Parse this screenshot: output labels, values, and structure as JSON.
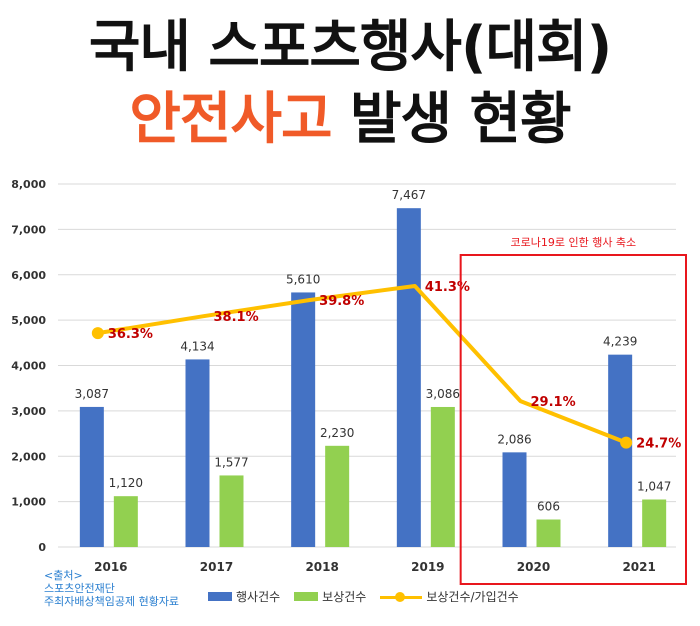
{
  "title": {
    "line1": "국내 스포츠행사(대회)",
    "line2_accent": "안전사고",
    "line2_rest": "발생 현황"
  },
  "annotation": "코로나19로 인한 행사 축소",
  "source": {
    "line1": "<출처>",
    "line2": "스포츠안전재단",
    "line3": "주최자배상책임공제 현황자료"
  },
  "colors": {
    "bar1": "#4472c4",
    "bar2": "#92d050",
    "line": "#ffc000",
    "line_label": "#c00000",
    "highlight_box": "#e8161d",
    "title_accent": "#f05a28"
  },
  "chart_data": {
    "type": "bar",
    "categories": [
      "2016",
      "2017",
      "2018",
      "2019",
      "2020",
      "2021"
    ],
    "ylim": [
      0,
      8000
    ],
    "yticks": [
      "0",
      "1,000",
      "2,000",
      "3,000",
      "4,000",
      "5,000",
      "6,000",
      "7,000",
      "8,000"
    ],
    "series": [
      {
        "name": "행사건수",
        "values": [
          3087,
          4134,
          5610,
          7467,
          2086,
          4239
        ],
        "labels": [
          "3,087",
          "4,134",
          "5,610",
          "7,467",
          "2,086",
          "4,239"
        ]
      },
      {
        "name": "보상건수",
        "values": [
          1120,
          1577,
          2230,
          3086,
          606,
          1047
        ],
        "labels": [
          "1,120",
          "1,577",
          "2,230",
          "3,086",
          "606",
          "1,047"
        ]
      }
    ],
    "line_series": {
      "name": "보상건수/가입건수",
      "values": [
        36.3,
        38.1,
        39.8,
        41.3,
        29.1,
        24.7
      ],
      "labels": [
        "36.3%",
        "38.1%",
        "39.8%",
        "41.3%",
        "29.1%",
        "24.7%"
      ]
    },
    "legend": "bottom"
  }
}
